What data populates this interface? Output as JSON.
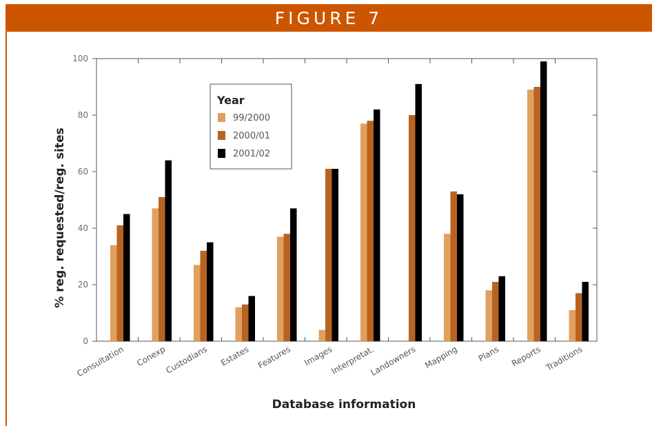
{
  "header": {
    "title": "FIGURE 7"
  },
  "colors": {
    "banner": "#cc5600",
    "series": [
      "#e0a060",
      "#b86420",
      "#000000"
    ]
  },
  "chart_data": {
    "type": "bar",
    "title": "",
    "xlabel": "Database information",
    "ylabel": "% reg. requested/reg. sites",
    "ylim": [
      0,
      100
    ],
    "yticks": [
      0,
      20,
      40,
      60,
      80,
      100
    ],
    "categories": [
      "Consultation",
      "Conexp",
      "Custodians",
      "Estates",
      "Features",
      "Images",
      "Interpretat.",
      "Landowners",
      "Mapping",
      "Plans",
      "Reports",
      "Traditions"
    ],
    "legend": {
      "title": "Year",
      "placement": "top-left"
    },
    "series": [
      {
        "name": "99/2000",
        "values": [
          34,
          47,
          27,
          12,
          37,
          4,
          77,
          0,
          38,
          18,
          89,
          11
        ]
      },
      {
        "name": "2000/01",
        "values": [
          41,
          51,
          32,
          13,
          38,
          61,
          78,
          80,
          53,
          21,
          90,
          17
        ]
      },
      {
        "name": "2001/02",
        "values": [
          45,
          64,
          35,
          16,
          47,
          61,
          82,
          91,
          52,
          23,
          99,
          21
        ]
      }
    ],
    "grid": false
  }
}
